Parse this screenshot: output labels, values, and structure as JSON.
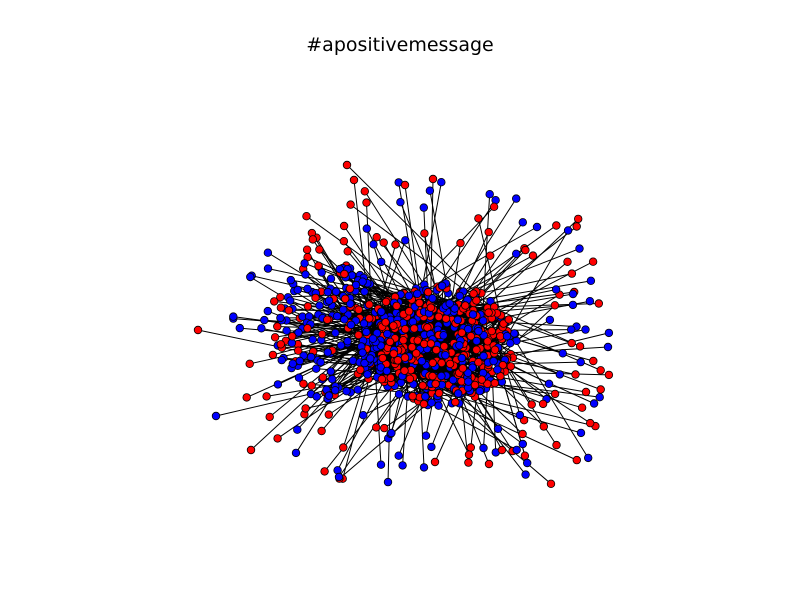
{
  "figure": {
    "title": "#apositivemessage"
  },
  "graph": {
    "node_colors": [
      "#ff0000",
      "#0000ff"
    ],
    "node_outline": "#000000",
    "edge_color": "#000000",
    "background": "#ffffff"
  }
}
